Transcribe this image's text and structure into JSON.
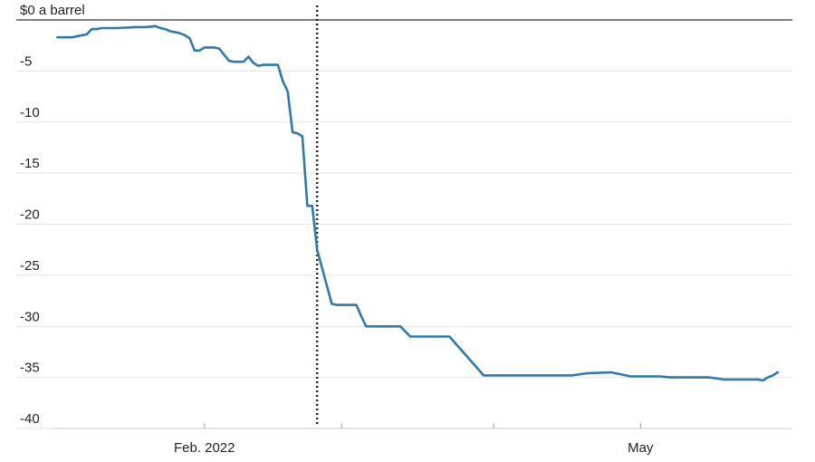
{
  "chart_data": {
    "type": "line",
    "ylim": [
      -40,
      0
    ],
    "y_ticks": [
      0,
      -5,
      -10,
      -15,
      -20,
      -25,
      -30,
      -35,
      -40
    ],
    "y_tick_labels": [
      "$0 a barrel",
      "-5",
      "-10",
      "-15",
      "-20",
      "-25",
      "-30",
      "-35",
      "-40"
    ],
    "x_ticks": [
      {
        "value": 30,
        "label": "Feb. 2022"
      },
      {
        "value": 58,
        "label": ""
      },
      {
        "value": 89,
        "label": ""
      },
      {
        "value": 119,
        "label": "May"
      }
    ],
    "xlim": [
      -1,
      150
    ],
    "event_marker_x": 53,
    "grid": true,
    "series": [
      {
        "color": "#2b7bb0",
        "x": [
          0,
          3,
          6,
          7,
          8,
          9,
          12,
          14,
          16,
          18,
          20,
          21,
          22,
          23,
          24,
          25,
          26,
          27,
          28,
          29,
          30,
          31,
          32,
          33,
          34,
          35,
          36,
          38,
          39,
          40,
          41,
          42,
          43,
          44,
          45,
          46,
          47,
          48,
          49,
          50,
          51,
          52,
          53,
          56,
          57,
          58,
          59,
          60,
          61,
          62,
          63,
          69,
          70,
          72,
          76,
          78,
          79,
          80,
          87,
          90,
          92,
          95,
          96,
          98,
          100,
          104,
          105,
          108,
          113,
          117,
          118,
          123,
          125,
          127,
          128,
          130,
          133,
          136,
          138,
          139,
          140,
          141,
          142,
          143,
          144,
          145,
          146,
          147
        ],
        "y": [
          -1.7,
          -1.7,
          -1.4,
          -0.9,
          -0.9,
          -0.8,
          -0.8,
          -0.75,
          -0.7,
          -0.7,
          -0.6,
          -0.8,
          -0.9,
          -1.1,
          -1.2,
          -1.3,
          -1.5,
          -1.8,
          -3.0,
          -3.0,
          -2.7,
          -2.7,
          -2.7,
          -2.8,
          -3.4,
          -4.0,
          -4.1,
          -4.1,
          -3.6,
          -4.2,
          -4.5,
          -4.4,
          -4.4,
          -4.4,
          -4.4,
          -6.0,
          -7.0,
          -11.0,
          -11.1,
          -11.4,
          -18.2,
          -18.2,
          -22.5,
          -27.8,
          -27.9,
          -27.9,
          -27.9,
          -27.9,
          -27.9,
          -29.0,
          -30.0,
          -30.0,
          -30.0,
          -31.0,
          -31.0,
          -31.0,
          -31.0,
          -31.0,
          -34.8,
          -34.8,
          -34.8,
          -34.8,
          -34.8,
          -34.8,
          -34.8,
          -34.8,
          -34.8,
          -34.6,
          -34.5,
          -34.9,
          -34.9,
          -34.9,
          -35.0,
          -35.0,
          -35.0,
          -35.0,
          -35.0,
          -35.2,
          -35.2,
          -35.2,
          -35.2,
          -35.2,
          -35.2,
          -35.2,
          -35.3,
          -35.0,
          -34.8,
          -34.5
        ]
      }
    ]
  }
}
